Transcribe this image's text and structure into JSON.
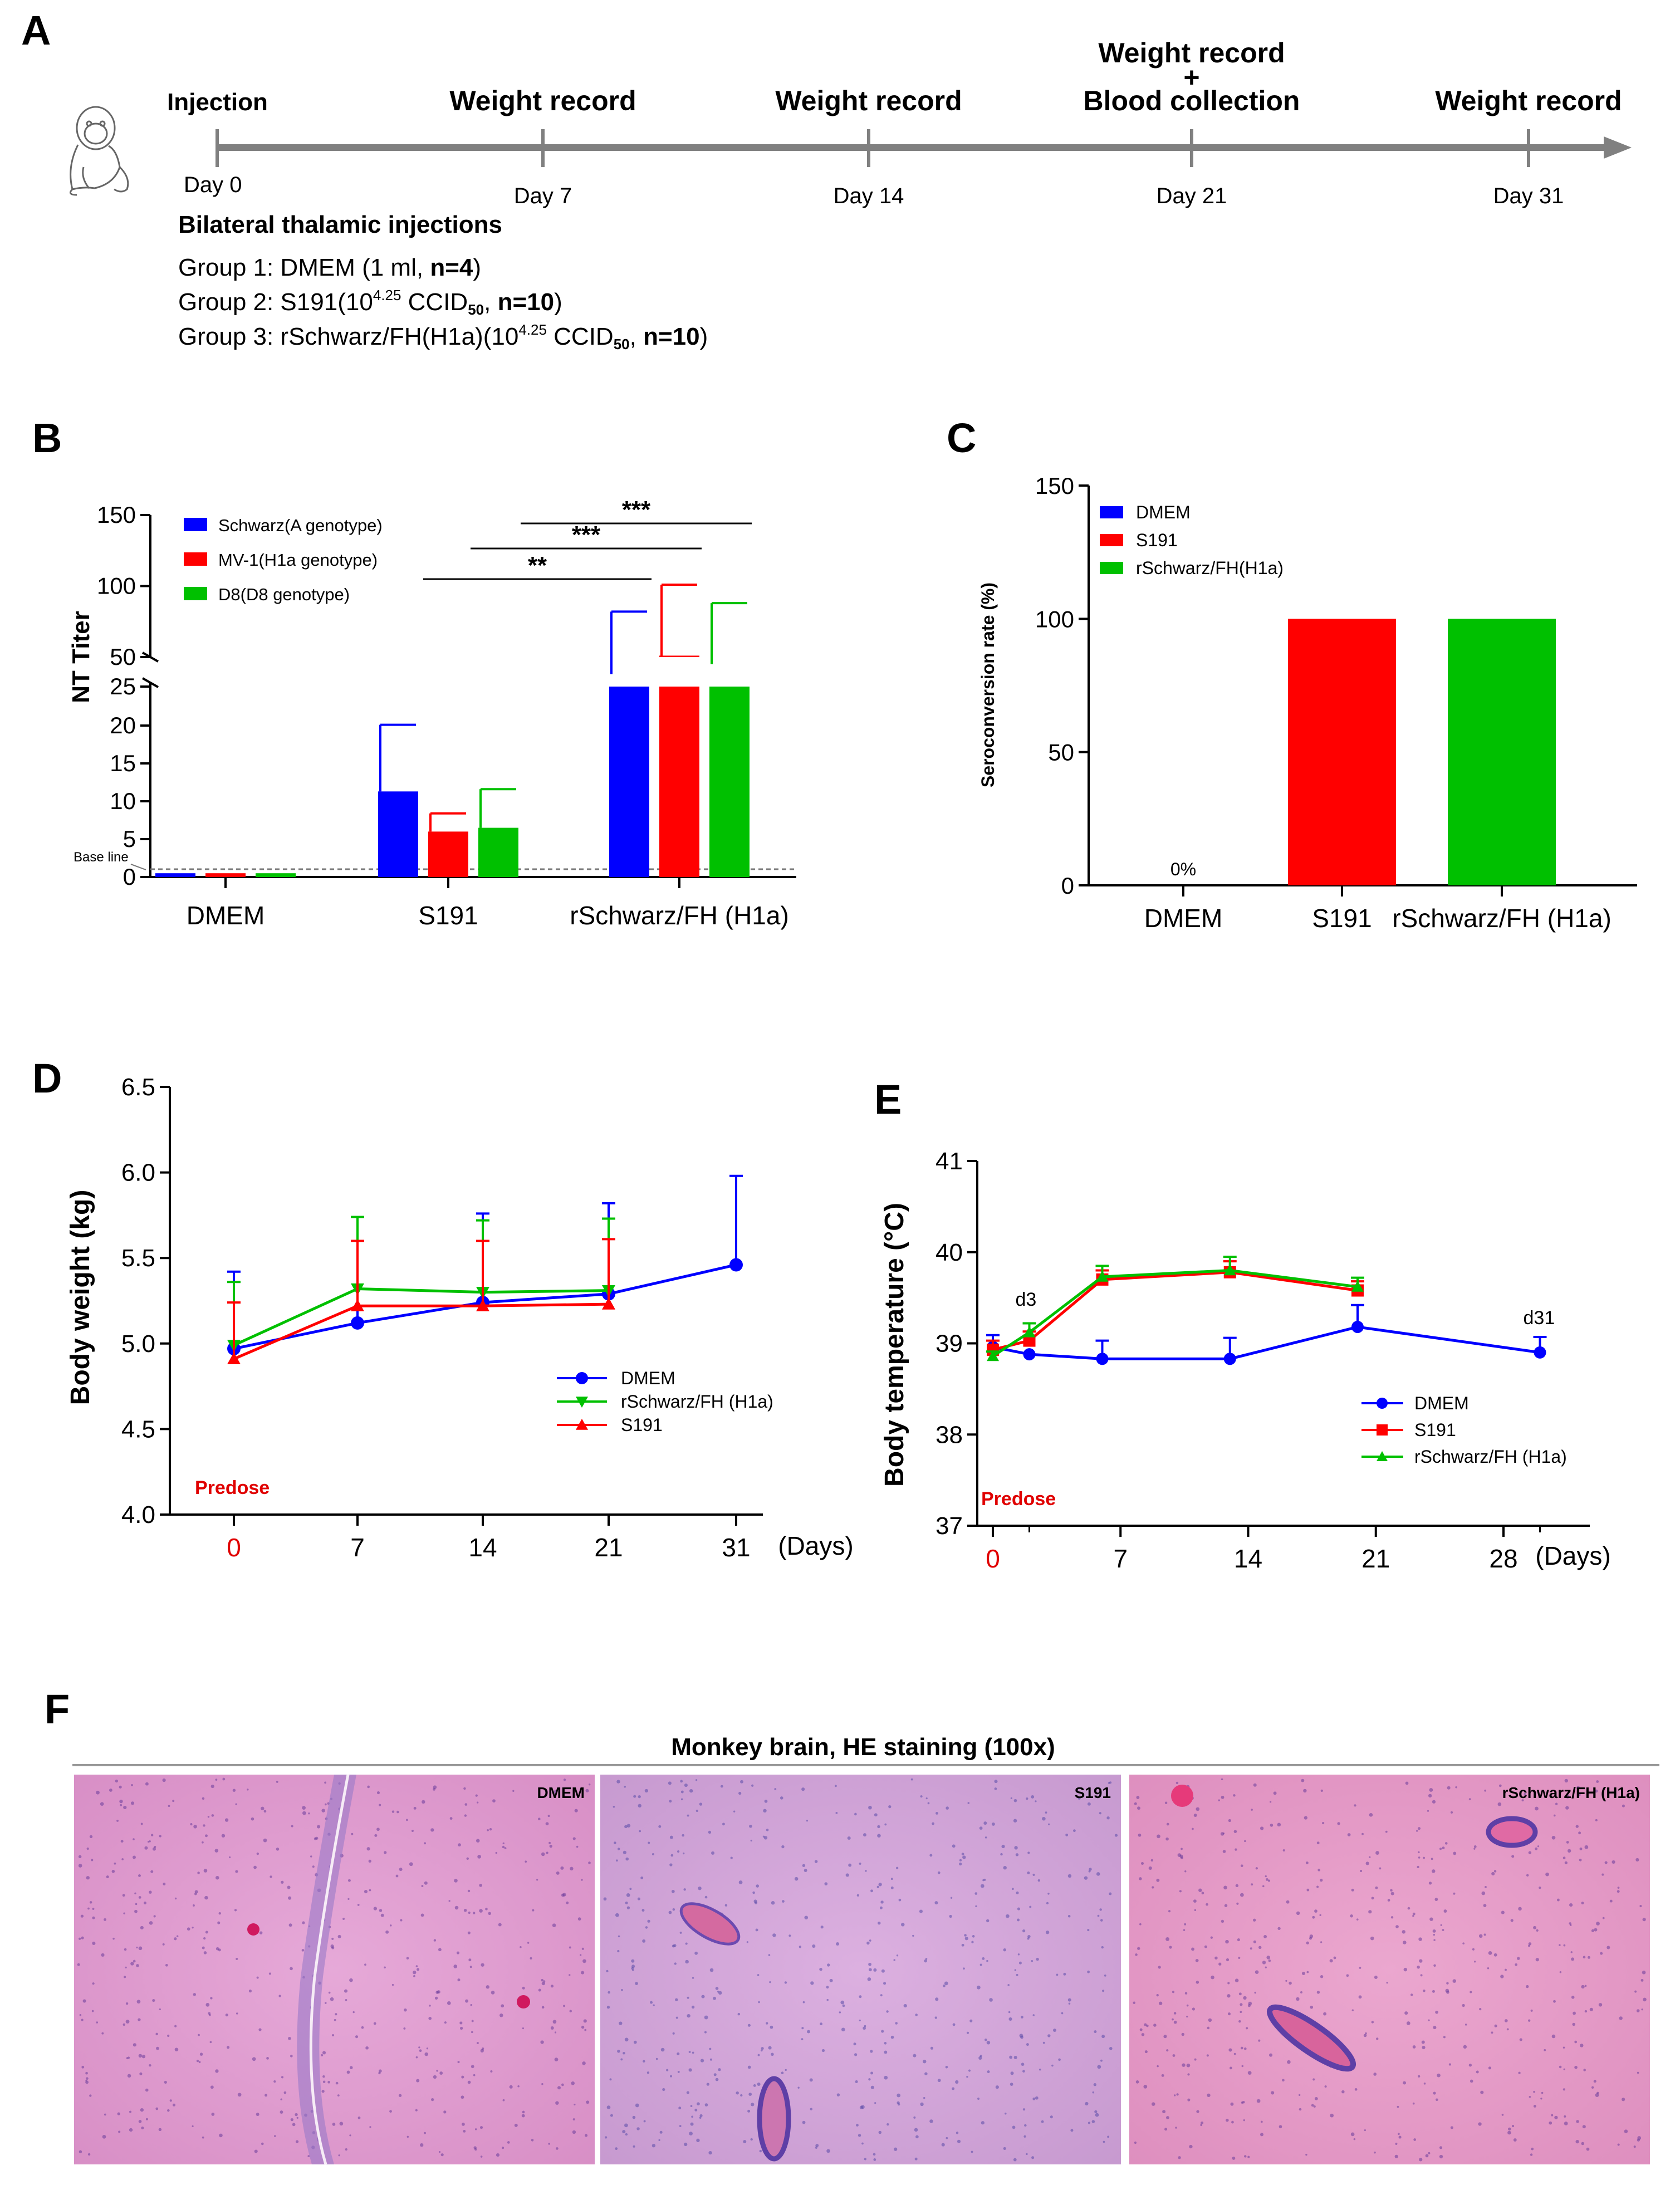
{
  "panel_labels": {
    "a": "A",
    "b": "B",
    "c": "C",
    "d": "D",
    "e": "E",
    "f": "F"
  },
  "timeline": {
    "events": [
      {
        "top": "",
        "mid": "",
        "label": "Injection",
        "day": "Day 0"
      },
      {
        "top": "",
        "mid": "",
        "label": "Weight record",
        "day": "Day 7"
      },
      {
        "top": "",
        "mid": "",
        "label": "Weight record",
        "day": "Day 14"
      },
      {
        "top": "Weight record",
        "mid": "+",
        "label": "Blood collection",
        "day": "Day 21"
      },
      {
        "top": "",
        "mid": "",
        "label": "Weight record",
        "day": "Day 31"
      }
    ],
    "heading": "Bilateral thalamic injections",
    "groups": [
      {
        "prefix": "Group 1: DMEM (1 ml, ",
        "dose": "",
        "sup": "",
        "unit": "",
        "sub": "",
        "n": "n=4",
        "suffix": ")"
      },
      {
        "prefix": "Group 2: S191(",
        "dose": "10",
        "sup": "4.25",
        "unit": " CCID",
        "sub": "50",
        "n": "n=10",
        "suffix": ")"
      },
      {
        "prefix": "Group 3: rSchwarz/FH(H1a)(",
        "dose": "10",
        "sup": "4.25",
        "unit": " CCID",
        "sub": "50",
        "n": "n=10",
        "suffix": ")"
      }
    ]
  },
  "colors": {
    "blue": "#0000ff",
    "red": "#ff0000",
    "green": "#00c000",
    "arrow": "#808080",
    "predose": "#e00000"
  },
  "chart_data": [
    {
      "id": "B",
      "type": "bar",
      "title": "",
      "ylabel": "NT Titer",
      "xlabel": "",
      "categories": [
        "DMEM",
        "S191",
        "rSchwarz/FH (H1a)"
      ],
      "y_axis_break": {
        "lower_range": [
          0,
          25
        ],
        "upper_range": [
          25,
          150
        ]
      },
      "yticks_lower": [
        0,
        5,
        10,
        15,
        20,
        25
      ],
      "yticks_upper": [
        50,
        100,
        150
      ],
      "series": [
        {
          "name": "Schwarz(A genotype)",
          "values": [
            0.5,
            11.3,
            38
          ],
          "errors": [
            0,
            8.8,
            44
          ]
        },
        {
          "name": "MV-1(H1a genotype)",
          "values": [
            0.5,
            6.0,
            51
          ],
          "errors": [
            0,
            2.4,
            50
          ]
        },
        {
          "name": "D8(D8 genotype)",
          "values": [
            0.5,
            6.5,
            45
          ],
          "errors": [
            0,
            5.1,
            43
          ]
        }
      ],
      "baseline": {
        "label": "Base line",
        "value": 0.7
      },
      "significance": [
        "**",
        "***",
        "***"
      ]
    },
    {
      "id": "C",
      "type": "bar",
      "title": "",
      "ylabel": "Seroconversion rate (%)",
      "xlabel": "",
      "categories": [
        "DMEM",
        "S191",
        "rSchwarz/FH (H1a)"
      ],
      "values": [
        0,
        100,
        100
      ],
      "ylim": [
        0,
        150
      ],
      "yticks": [
        0,
        50,
        100,
        150
      ],
      "legend": [
        "DMEM",
        "S191",
        "rSchwarz/FH(H1a)"
      ],
      "annotations": [
        "0%"
      ]
    },
    {
      "id": "D",
      "type": "line",
      "title": "",
      "ylabel": "Body weight (kg)",
      "xlabel": "(Days)",
      "x_ticks": [
        "0",
        "7",
        "14",
        "21",
        "31"
      ],
      "ylim": [
        4.0,
        6.5
      ],
      "yticks": [
        "4.0",
        "4.5",
        "5.0",
        "5.5",
        "6.0",
        "6.5"
      ],
      "predose_label": "Predose",
      "series": [
        {
          "name": "DMEM",
          "x": [
            0,
            7,
            14,
            21,
            31
          ],
          "y": [
            4.97,
            5.12,
            5.24,
            5.29,
            5.46
          ],
          "err": [
            0.45,
            0.48,
            0.52,
            0.53,
            0.52
          ]
        },
        {
          "name": "rSchwarz/FH (H1a)",
          "x": [
            0,
            7,
            14,
            21
          ],
          "y": [
            4.99,
            5.32,
            5.3,
            5.31
          ],
          "err": [
            0.37,
            0.42,
            0.42,
            0.42
          ]
        },
        {
          "name": "S191",
          "x": [
            0,
            7,
            14,
            21
          ],
          "y": [
            4.91,
            5.22,
            5.22,
            5.23
          ],
          "err": [
            0.33,
            0.38,
            0.38,
            0.38
          ]
        }
      ]
    },
    {
      "id": "E",
      "type": "line",
      "title": "",
      "ylabel": "Body temperature (°C)",
      "xlabel": "(Days)",
      "x_ticks": [
        "0",
        "7",
        "14",
        "21",
        "28"
      ],
      "xlim": [
        0,
        31
      ],
      "ylim": [
        37,
        41
      ],
      "yticks": [
        "37",
        "38",
        "39",
        "40",
        "41"
      ],
      "predose_label": "Predose",
      "annotations": [
        "d3",
        "d31"
      ],
      "series": [
        {
          "name": "DMEM",
          "x": [
            0,
            2,
            6,
            13,
            20,
            30
          ],
          "y": [
            38.96,
            38.88,
            38.83,
            38.83,
            39.18,
            38.9
          ],
          "err": [
            0.13,
            0,
            0.2,
            0.23,
            0.24,
            0.17
          ]
        },
        {
          "name": "S191",
          "x": [
            0,
            2,
            6,
            13,
            20
          ],
          "y": [
            38.93,
            39.03,
            39.7,
            39.78,
            39.58
          ],
          "err": [
            0.1,
            0.1,
            0.1,
            0.12,
            0.1
          ]
        },
        {
          "name": "rSchwarz/FH (H1a)",
          "x": [
            0,
            2,
            6,
            13,
            20
          ],
          "y": [
            38.86,
            39.12,
            39.73,
            39.8,
            39.62
          ],
          "err": [
            0.05,
            0.1,
            0.12,
            0.15,
            0.1
          ]
        }
      ]
    }
  ],
  "histology": {
    "title": "Monkey brain, HE staining (100x)",
    "panels": [
      "DMEM",
      "S191",
      "rSchwarz/FH (H1a)"
    ]
  }
}
